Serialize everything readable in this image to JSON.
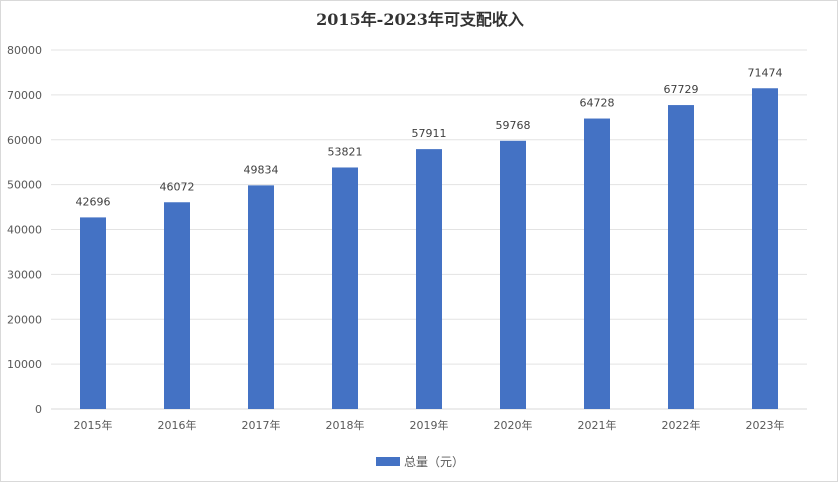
{
  "chart_data": {
    "type": "bar",
    "title": "2015年-2023年可支配收入",
    "categories": [
      "2015年",
      "2016年",
      "2017年",
      "2018年",
      "2019年",
      "2020年",
      "2021年",
      "2022年",
      "2023年"
    ],
    "series": [
      {
        "name": "总量（元）",
        "values": [
          42696,
          46072,
          49834,
          53821,
          57911,
          59768,
          64728,
          67729,
          71474
        ],
        "color": "#4472c4"
      }
    ],
    "ylim": [
      0,
      80000
    ],
    "yticks": [
      0,
      10000,
      20000,
      30000,
      40000,
      50000,
      60000,
      70000,
      80000
    ],
    "grid": true,
    "legend": "bottom",
    "data_labels": true
  }
}
